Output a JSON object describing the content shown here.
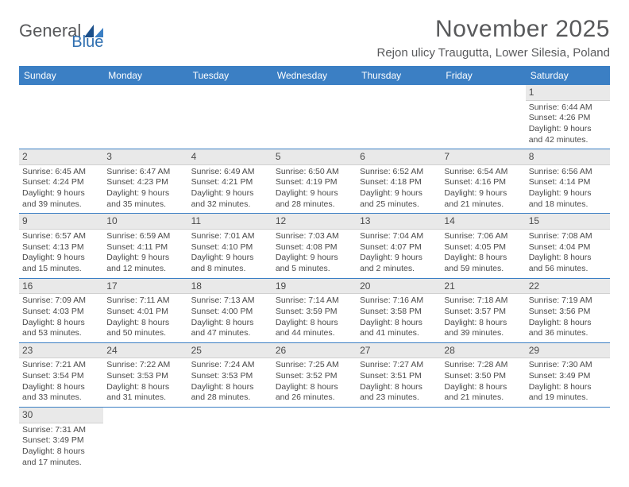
{
  "brand": {
    "text1": "General",
    "text2": "Blue",
    "icon_color_dark": "#1b4f8a",
    "icon_color_light": "#3b7fc4",
    "text_color": "#58595b"
  },
  "title": {
    "month": "November 2025",
    "location": "Rejon ulicy Traugutta, Lower Silesia, Poland",
    "title_fontsize": 30,
    "location_fontsize": 15,
    "text_color": "#58595b"
  },
  "colors": {
    "header_bg": "#3b7fc4",
    "header_text": "#ffffff",
    "daynum_bg": "#e9e9e9",
    "row_divider": "#3b7fc4",
    "body_text": "#4a4a4a",
    "page_bg": "#ffffff"
  },
  "layout": {
    "columns": 7,
    "rows": 6,
    "cell_font_size": 10.5,
    "header_font_size": 12
  },
  "day_headers": [
    "Sunday",
    "Monday",
    "Tuesday",
    "Wednesday",
    "Thursday",
    "Friday",
    "Saturday"
  ],
  "weeks": [
    [
      {
        "day": "",
        "lines": []
      },
      {
        "day": "",
        "lines": []
      },
      {
        "day": "",
        "lines": []
      },
      {
        "day": "",
        "lines": []
      },
      {
        "day": "",
        "lines": []
      },
      {
        "day": "",
        "lines": []
      },
      {
        "day": "1",
        "lines": [
          "Sunrise: 6:44 AM",
          "Sunset: 4:26 PM",
          "Daylight: 9 hours and 42 minutes."
        ]
      }
    ],
    [
      {
        "day": "2",
        "lines": [
          "Sunrise: 6:45 AM",
          "Sunset: 4:24 PM",
          "Daylight: 9 hours and 39 minutes."
        ]
      },
      {
        "day": "3",
        "lines": [
          "Sunrise: 6:47 AM",
          "Sunset: 4:23 PM",
          "Daylight: 9 hours and 35 minutes."
        ]
      },
      {
        "day": "4",
        "lines": [
          "Sunrise: 6:49 AM",
          "Sunset: 4:21 PM",
          "Daylight: 9 hours and 32 minutes."
        ]
      },
      {
        "day": "5",
        "lines": [
          "Sunrise: 6:50 AM",
          "Sunset: 4:19 PM",
          "Daylight: 9 hours and 28 minutes."
        ]
      },
      {
        "day": "6",
        "lines": [
          "Sunrise: 6:52 AM",
          "Sunset: 4:18 PM",
          "Daylight: 9 hours and 25 minutes."
        ]
      },
      {
        "day": "7",
        "lines": [
          "Sunrise: 6:54 AM",
          "Sunset: 4:16 PM",
          "Daylight: 9 hours and 21 minutes."
        ]
      },
      {
        "day": "8",
        "lines": [
          "Sunrise: 6:56 AM",
          "Sunset: 4:14 PM",
          "Daylight: 9 hours and 18 minutes."
        ]
      }
    ],
    [
      {
        "day": "9",
        "lines": [
          "Sunrise: 6:57 AM",
          "Sunset: 4:13 PM",
          "Daylight: 9 hours and 15 minutes."
        ]
      },
      {
        "day": "10",
        "lines": [
          "Sunrise: 6:59 AM",
          "Sunset: 4:11 PM",
          "Daylight: 9 hours and 12 minutes."
        ]
      },
      {
        "day": "11",
        "lines": [
          "Sunrise: 7:01 AM",
          "Sunset: 4:10 PM",
          "Daylight: 9 hours and 8 minutes."
        ]
      },
      {
        "day": "12",
        "lines": [
          "Sunrise: 7:03 AM",
          "Sunset: 4:08 PM",
          "Daylight: 9 hours and 5 minutes."
        ]
      },
      {
        "day": "13",
        "lines": [
          "Sunrise: 7:04 AM",
          "Sunset: 4:07 PM",
          "Daylight: 9 hours and 2 minutes."
        ]
      },
      {
        "day": "14",
        "lines": [
          "Sunrise: 7:06 AM",
          "Sunset: 4:05 PM",
          "Daylight: 8 hours and 59 minutes."
        ]
      },
      {
        "day": "15",
        "lines": [
          "Sunrise: 7:08 AM",
          "Sunset: 4:04 PM",
          "Daylight: 8 hours and 56 minutes."
        ]
      }
    ],
    [
      {
        "day": "16",
        "lines": [
          "Sunrise: 7:09 AM",
          "Sunset: 4:03 PM",
          "Daylight: 8 hours and 53 minutes."
        ]
      },
      {
        "day": "17",
        "lines": [
          "Sunrise: 7:11 AM",
          "Sunset: 4:01 PM",
          "Daylight: 8 hours and 50 minutes."
        ]
      },
      {
        "day": "18",
        "lines": [
          "Sunrise: 7:13 AM",
          "Sunset: 4:00 PM",
          "Daylight: 8 hours and 47 minutes."
        ]
      },
      {
        "day": "19",
        "lines": [
          "Sunrise: 7:14 AM",
          "Sunset: 3:59 PM",
          "Daylight: 8 hours and 44 minutes."
        ]
      },
      {
        "day": "20",
        "lines": [
          "Sunrise: 7:16 AM",
          "Sunset: 3:58 PM",
          "Daylight: 8 hours and 41 minutes."
        ]
      },
      {
        "day": "21",
        "lines": [
          "Sunrise: 7:18 AM",
          "Sunset: 3:57 PM",
          "Daylight: 8 hours and 39 minutes."
        ]
      },
      {
        "day": "22",
        "lines": [
          "Sunrise: 7:19 AM",
          "Sunset: 3:56 PM",
          "Daylight: 8 hours and 36 minutes."
        ]
      }
    ],
    [
      {
        "day": "23",
        "lines": [
          "Sunrise: 7:21 AM",
          "Sunset: 3:54 PM",
          "Daylight: 8 hours and 33 minutes."
        ]
      },
      {
        "day": "24",
        "lines": [
          "Sunrise: 7:22 AM",
          "Sunset: 3:53 PM",
          "Daylight: 8 hours and 31 minutes."
        ]
      },
      {
        "day": "25",
        "lines": [
          "Sunrise: 7:24 AM",
          "Sunset: 3:53 PM",
          "Daylight: 8 hours and 28 minutes."
        ]
      },
      {
        "day": "26",
        "lines": [
          "Sunrise: 7:25 AM",
          "Sunset: 3:52 PM",
          "Daylight: 8 hours and 26 minutes."
        ]
      },
      {
        "day": "27",
        "lines": [
          "Sunrise: 7:27 AM",
          "Sunset: 3:51 PM",
          "Daylight: 8 hours and 23 minutes."
        ]
      },
      {
        "day": "28",
        "lines": [
          "Sunrise: 7:28 AM",
          "Sunset: 3:50 PM",
          "Daylight: 8 hours and 21 minutes."
        ]
      },
      {
        "day": "29",
        "lines": [
          "Sunrise: 7:30 AM",
          "Sunset: 3:49 PM",
          "Daylight: 8 hours and 19 minutes."
        ]
      }
    ],
    [
      {
        "day": "30",
        "lines": [
          "Sunrise: 7:31 AM",
          "Sunset: 3:49 PM",
          "Daylight: 8 hours and 17 minutes."
        ]
      },
      {
        "day": "",
        "lines": []
      },
      {
        "day": "",
        "lines": []
      },
      {
        "day": "",
        "lines": []
      },
      {
        "day": "",
        "lines": []
      },
      {
        "day": "",
        "lines": []
      },
      {
        "day": "",
        "lines": []
      }
    ]
  ]
}
